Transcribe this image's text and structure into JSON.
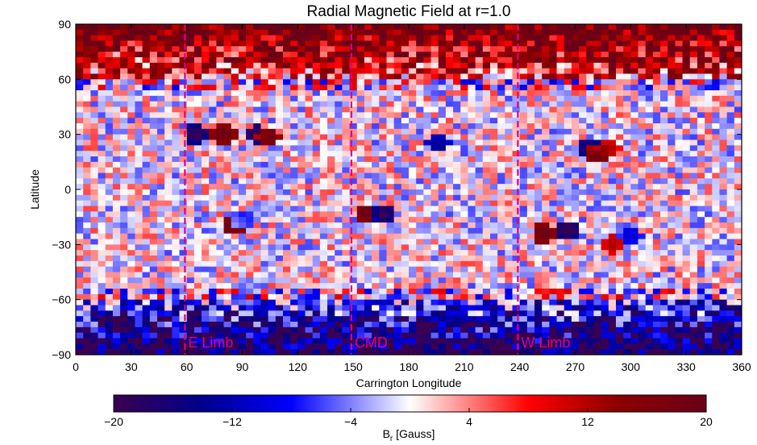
{
  "chart_data": {
    "type": "heatmap",
    "title": "Radial Magnetic Field at r=1.0",
    "xlabel": "Carrington Longitude",
    "ylabel": "Latitude",
    "xlim": [
      0,
      360
    ],
    "ylim": [
      -90,
      90
    ],
    "x_ticks": [
      0,
      30,
      60,
      90,
      120,
      150,
      180,
      210,
      240,
      270,
      300,
      330,
      360
    ],
    "y_ticks": [
      -90,
      -60,
      -30,
      0,
      30,
      60,
      90
    ],
    "x_tick_labels": [
      "0",
      "30",
      "60",
      "90",
      "120",
      "150",
      "180",
      "210",
      "240",
      "270",
      "300",
      "330",
      "360"
    ],
    "y_tick_labels": [
      "−90",
      "−60",
      "−30",
      "0",
      "30",
      "60",
      "90"
    ],
    "colorbar": {
      "label_main": "B",
      "label_sub": "r",
      "label_unit": " [Gauss]",
      "range": [
        -20,
        20
      ],
      "ticks": [
        -20,
        -12,
        -4,
        4,
        12,
        20
      ],
      "tick_labels": [
        "−20",
        "−12",
        "−4",
        "4",
        "12",
        "20"
      ],
      "colors": [
        "#3a0050",
        "#00008c",
        "#0000ff",
        "#ffffff",
        "#ff0000",
        "#8c0000",
        "#6a0018"
      ]
    },
    "reference_lines": [
      {
        "longitude": 59,
        "label": "E Limb",
        "color": "#e0007a"
      },
      {
        "longitude": 149,
        "label": "CMD",
        "color": "#e0007a"
      },
      {
        "longitude": 239,
        "label": "W Limb",
        "color": "#e0007a"
      }
    ],
    "active_regions": [
      {
        "lon": 65,
        "lat": 30,
        "br": -20
      },
      {
        "lon": 80,
        "lat": 30,
        "br": 20
      },
      {
        "lon": 98,
        "lat": 30,
        "br": -20
      },
      {
        "lon": 104,
        "lat": 29,
        "br": 20
      },
      {
        "lon": 85,
        "lat": -20,
        "br": 20
      },
      {
        "lon": 90,
        "lat": -17,
        "br": -8
      },
      {
        "lon": 157,
        "lat": -13,
        "br": 20
      },
      {
        "lon": 166,
        "lat": -13,
        "br": -20
      },
      {
        "lon": 196,
        "lat": 25,
        "br": -14
      },
      {
        "lon": 253,
        "lat": -24,
        "br": 20
      },
      {
        "lon": 266,
        "lat": -22,
        "br": -20
      },
      {
        "lon": 278,
        "lat": 22,
        "br": -18
      },
      {
        "lon": 282,
        "lat": 19,
        "br": 20
      },
      {
        "lon": 288,
        "lat": 22,
        "br": 12
      },
      {
        "lon": 290,
        "lat": -30,
        "br": 12
      },
      {
        "lon": 300,
        "lat": -25,
        "br": -10
      }
    ],
    "polar_field": {
      "north": "positive (red) above latitude ~60",
      "south": "negative (blue) below latitude ~-60"
    }
  }
}
